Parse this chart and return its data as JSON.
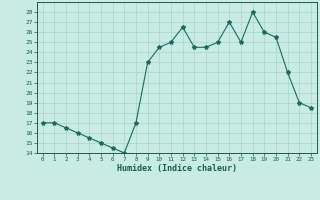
{
  "x": [
    0,
    1,
    2,
    3,
    4,
    5,
    6,
    7,
    8,
    9,
    10,
    11,
    12,
    13,
    14,
    15,
    16,
    17,
    18,
    19,
    20,
    21,
    22,
    23
  ],
  "y": [
    17,
    17,
    16.5,
    16,
    15.5,
    15,
    14.5,
    14,
    17,
    23,
    24.5,
    25,
    26.5,
    24.5,
    24.5,
    25,
    27,
    25,
    28,
    26,
    25.5,
    22,
    19,
    18.5
  ],
  "line_color": "#1a6b5a",
  "marker": "*",
  "marker_size": 3,
  "bg_color": "#c8ebe3",
  "grid_color": "#aad4cc",
  "xlabel": "Humidex (Indice chaleur)",
  "ylim": [
    14,
    29
  ],
  "xlim": [
    -0.5,
    23.5
  ],
  "yticks": [
    14,
    15,
    16,
    17,
    18,
    19,
    20,
    21,
    22,
    23,
    24,
    25,
    26,
    27,
    28
  ],
  "xticks": [
    0,
    1,
    2,
    3,
    4,
    5,
    6,
    7,
    8,
    9,
    10,
    11,
    12,
    13,
    14,
    15,
    16,
    17,
    18,
    19,
    20,
    21,
    22,
    23
  ],
  "tick_color": "#1a5c4a",
  "label_color": "#1a5c4a",
  "spine_color": "#1a5c4a"
}
